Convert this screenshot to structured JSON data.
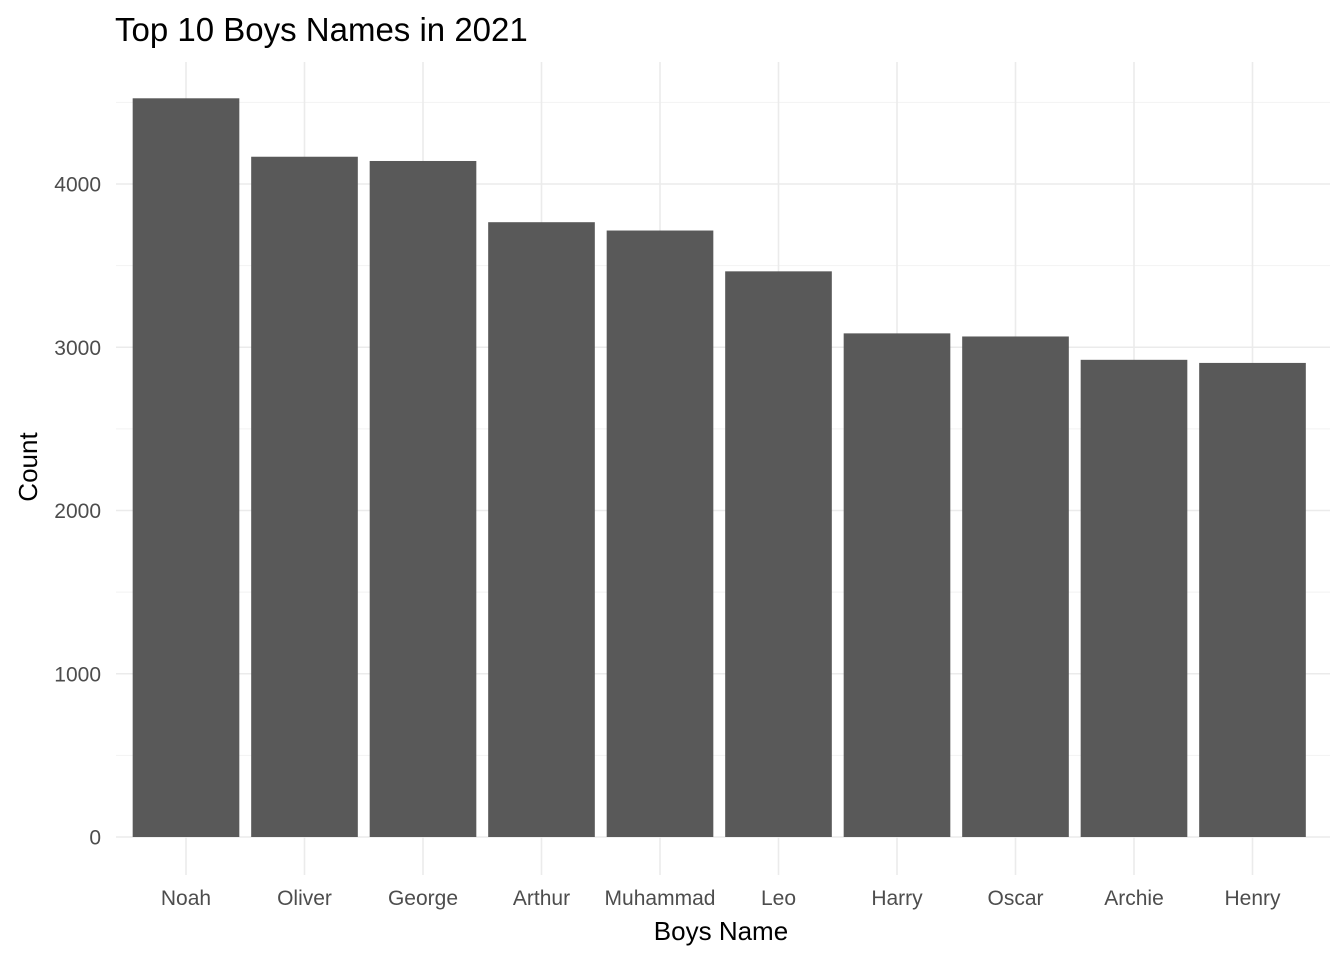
{
  "chart_data": {
    "type": "bar",
    "title": "Top 10 Boys Names in 2021",
    "xlabel": "Boys Name",
    "ylabel": "Count",
    "categories": [
      "Noah",
      "Oliver",
      "George",
      "Arthur",
      "Muhammad",
      "Leo",
      "Harry",
      "Oscar",
      "Archie",
      "Henry"
    ],
    "values": [
      4525,
      4167,
      4141,
      3766,
      3715,
      3465,
      3085,
      3066,
      2923,
      2904
    ],
    "ylim": [
      0,
      4750
    ],
    "yticks": [
      0,
      1000,
      2000,
      3000,
      4000
    ],
    "grid": true,
    "bar_color": "#595959"
  }
}
